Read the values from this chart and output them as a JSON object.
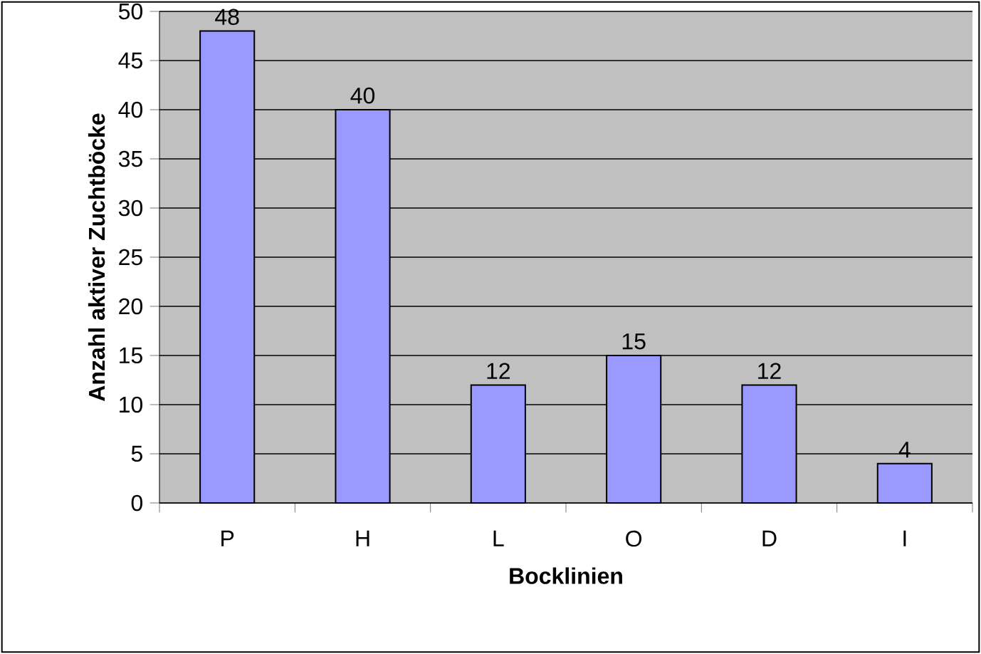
{
  "chart_data": {
    "type": "bar",
    "xlabel": "Bocklinien",
    "ylabel": "Anzahl aktiver Zuchtböcke",
    "categories": [
      "P",
      "H",
      "L",
      "O",
      "D",
      "I"
    ],
    "values": [
      48,
      40,
      12,
      15,
      12,
      4
    ],
    "color": "#9999ff",
    "ylim": [
      0,
      50
    ],
    "yticks": [
      0,
      5,
      10,
      15,
      20,
      25,
      30,
      35,
      40,
      45,
      50
    ],
    "grid": "y",
    "data_labels": true
  }
}
